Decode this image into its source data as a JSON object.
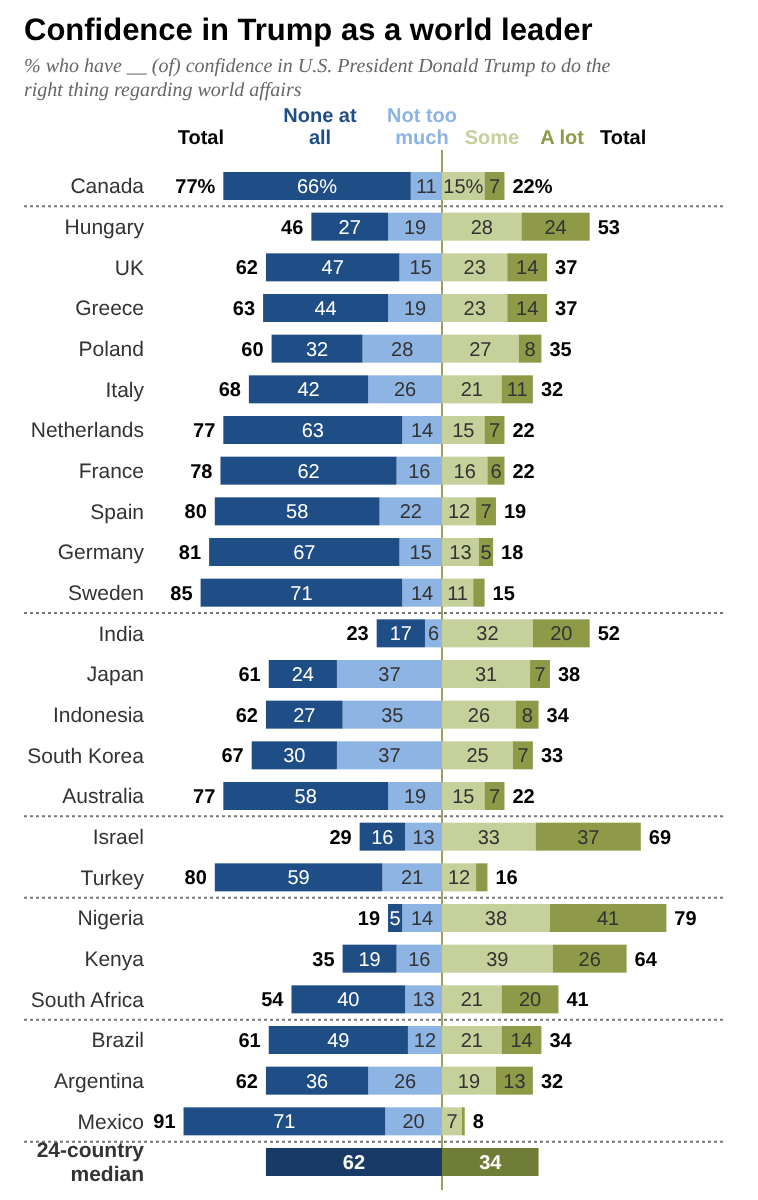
{
  "chart_data": [
    {
      "type": "bar",
      "orientation": "horizontal",
      "stacked": true,
      "title": "Confidence in Trump as a world leader",
      "subtitle": "% who have __ (of) confidence in U.S. President Donald Trump to do the right thing regarding world affairs",
      "legend": "top",
      "tick_labels": "y",
      "categories": [
        "Canada",
        "Hungary",
        "UK",
        "Greece",
        "Poland",
        "Italy",
        "Netherlands",
        "France",
        "Spain",
        "Germany",
        "Sweden",
        "India",
        "Japan",
        "Indonesia",
        "South Korea",
        "Australia",
        "Israel",
        "Turkey",
        "Nigeria",
        "Kenya",
        "South Africa",
        "Brazil",
        "Argentina",
        "Mexico",
        "24-country median"
      ],
      "series": [
        {
          "name": "Not too much",
          "color": "#8db4e2",
          "values": [
            11,
            19,
            15,
            19,
            28,
            26,
            14,
            16,
            22,
            15,
            14,
            6,
            37,
            35,
            37,
            19,
            13,
            21,
            14,
            16,
            13,
            12,
            26,
            20,
            null
          ],
          "value_labels": [
            "11",
            "19",
            "15",
            "19",
            "28",
            "26",
            "14",
            "16",
            "22",
            "15",
            "14",
            "6",
            "37",
            "35",
            "37",
            "19",
            "13",
            "21",
            "14",
            "16",
            "13",
            "12",
            "26",
            "20",
            null
          ]
        },
        {
          "name": "None at all",
          "color": "#1f4e86",
          "values": [
            66,
            27,
            47,
            44,
            32,
            42,
            63,
            62,
            58,
            67,
            71,
            17,
            24,
            27,
            30,
            58,
            16,
            59,
            5,
            19,
            40,
            49,
            36,
            71,
            null
          ],
          "value_labels": [
            "66%",
            "27",
            "47",
            "44",
            "32",
            "42",
            "63",
            "62",
            "58",
            "67",
            "71",
            "17",
            "24",
            "27",
            "30",
            "58",
            "16",
            "59",
            "5",
            "19",
            "40",
            "49",
            "36",
            "71",
            null
          ]
        },
        {
          "color": "#173a67",
          "values": [
            null,
            null,
            null,
            null,
            null,
            null,
            null,
            null,
            null,
            null,
            null,
            null,
            null,
            null,
            null,
            null,
            null,
            null,
            null,
            null,
            null,
            null,
            null,
            null,
            62
          ],
          "value_labels": [
            null,
            null,
            null,
            null,
            null,
            null,
            null,
            null,
            null,
            null,
            null,
            null,
            null,
            null,
            null,
            null,
            null,
            null,
            null,
            null,
            null,
            null,
            null,
            null,
            "62"
          ]
        }
      ],
      "totals": [
        "77%",
        "46",
        "62",
        "63",
        "60",
        "68",
        "77",
        "78",
        "80",
        "81",
        "85",
        "23",
        "61",
        "62",
        "67",
        "77",
        "29",
        "80",
        "19",
        "35",
        "54",
        "61",
        "62",
        "91",
        null
      ],
      "ref_lines": [
        {
          "axis": "x",
          "value": 0,
          "line_style": "solid",
          "color": "#9aa060"
        },
        {
          "axis": "y",
          "value": "Canada",
          "line_style": "dotted",
          "color": "#777777"
        },
        {
          "axis": "y",
          "value": "Sweden",
          "line_style": "dotted",
          "color": "#777777"
        },
        {
          "axis": "y",
          "value": "Australia",
          "line_style": "dotted",
          "color": "#777777"
        },
        {
          "axis": "y",
          "value": "Turkey",
          "line_style": "dotted",
          "color": "#777777"
        },
        {
          "axis": "y",
          "value": "South Africa",
          "line_style": "dotted",
          "color": "#777777"
        },
        {
          "axis": "y",
          "value": "Mexico",
          "line_style": "dotted",
          "color": "#777777"
        }
      ],
      "annotations": [
        "Total"
      ]
    },
    {
      "type": "bar",
      "orientation": "horizontal",
      "stacked": true,
      "legend": "top",
      "tick_labels": false,
      "categories": [
        "Canada",
        "Hungary",
        "UK",
        "Greece",
        "Poland",
        "Italy",
        "Netherlands",
        "France",
        "Spain",
        "Germany",
        "Sweden",
        "India",
        "Japan",
        "Indonesia",
        "South Korea",
        "Australia",
        "Israel",
        "Turkey",
        "Nigeria",
        "Kenya",
        "South Africa",
        "Brazil",
        "Argentina",
        "Mexico",
        "24-country median"
      ],
      "series": [
        {
          "name": "Some",
          "color": "#c5d09a",
          "values": [
            15,
            28,
            23,
            23,
            27,
            21,
            15,
            16,
            12,
            13,
            11,
            32,
            31,
            26,
            25,
            15,
            33,
            12,
            38,
            39,
            21,
            21,
            19,
            7,
            null
          ],
          "value_labels": [
            "15%",
            "28",
            "23",
            "23",
            "27",
            "21",
            "15",
            "16",
            "12",
            "13",
            "11",
            "32",
            "31",
            "26",
            "25",
            "15",
            "33",
            "12",
            "38",
            "39",
            "21",
            "21",
            "19",
            "7",
            null
          ]
        },
        {
          "name": "A lot",
          "color": "#8e9a48",
          "values": [
            7,
            24,
            14,
            14,
            8,
            11,
            7,
            6,
            7,
            5,
            4,
            20,
            7,
            8,
            7,
            7,
            37,
            4,
            41,
            26,
            20,
            14,
            13,
            1,
            null
          ],
          "value_labels": [
            "7",
            "24",
            "14",
            "14",
            "8",
            "11",
            "7",
            "6",
            "7",
            "5",
            null,
            "20",
            "7",
            "8",
            "7",
            "7",
            "37",
            null,
            "41",
            "26",
            "20",
            "14",
            "13",
            null,
            null
          ]
        },
        {
          "color": "#6f7d36",
          "values": [
            null,
            null,
            null,
            null,
            null,
            null,
            null,
            null,
            null,
            null,
            null,
            null,
            null,
            null,
            null,
            null,
            null,
            null,
            null,
            null,
            null,
            null,
            null,
            null,
            34
          ],
          "value_labels": [
            null,
            null,
            null,
            null,
            null,
            null,
            null,
            null,
            null,
            null,
            null,
            null,
            null,
            null,
            null,
            null,
            null,
            null,
            null,
            null,
            null,
            null,
            null,
            null,
            "34"
          ]
        }
      ],
      "totals": [
        "22%",
        "53",
        "37",
        "37",
        "35",
        "32",
        "22",
        "22",
        "19",
        "18",
        "15",
        "52",
        "38",
        "34",
        "33",
        "22",
        "69",
        "16",
        "79",
        "64",
        "41",
        "34",
        "32",
        "8",
        null
      ],
      "annotations": [
        "Total"
      ]
    }
  ]
}
